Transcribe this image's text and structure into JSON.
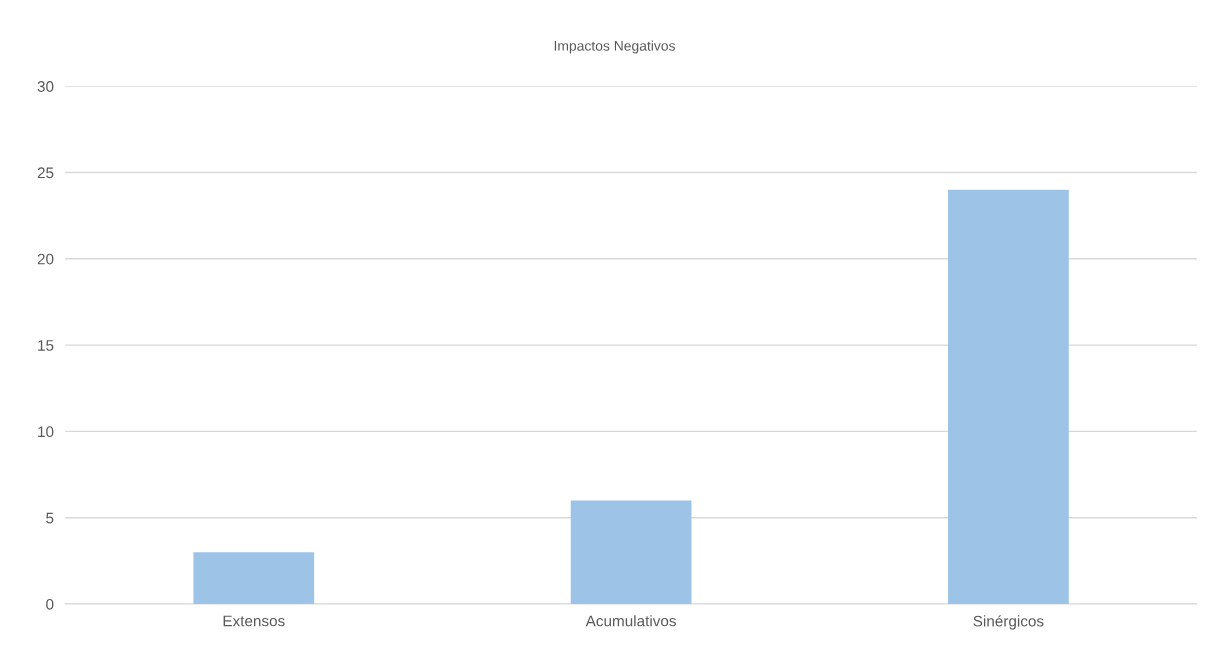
{
  "chart_data": {
    "type": "bar",
    "title": "Impactos Negativos",
    "categories": [
      "Extensos",
      "Acumulativos",
      "Sinérgicos"
    ],
    "values": [
      3,
      6,
      24
    ],
    "color": "#9dc3e6",
    "ylim": [
      0,
      30
    ],
    "yticks": [
      0,
      5,
      10,
      15,
      20,
      25,
      30
    ],
    "grid": "y",
    "legend": false
  }
}
